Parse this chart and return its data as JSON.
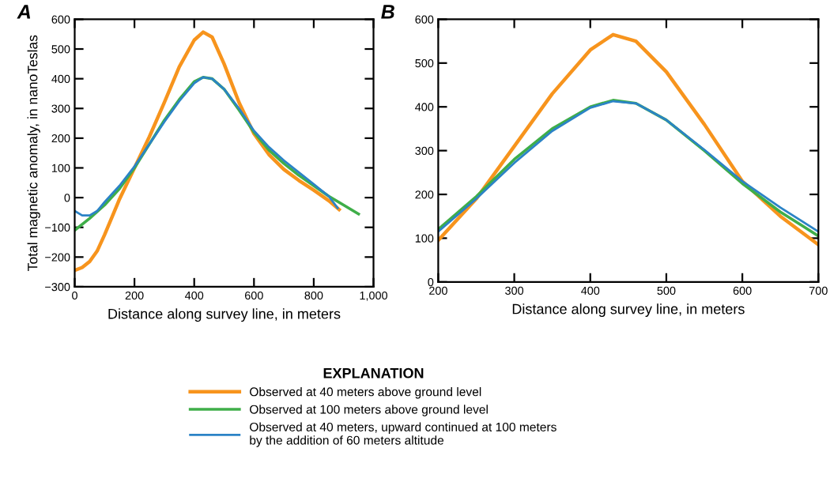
{
  "chart_data": [
    {
      "type": "line",
      "title": "A",
      "xlabel": "Distance along survey line, in meters",
      "ylabel": "Total magnetic anomaly, in nanoTeslas",
      "xlim": [
        0,
        1000
      ],
      "xticks": [
        0,
        200,
        400,
        600,
        800,
        {
          "value": 1000,
          "label": "1,000"
        }
      ],
      "ylim": [
        -300,
        600
      ],
      "yticks": [
        {
          "value": -300,
          "label": "−300"
        },
        {
          "value": -200,
          "label": "−200"
        },
        {
          "value": -100,
          "label": "−100"
        },
        0,
        100,
        200,
        300,
        400,
        500,
        600
      ],
      "grid": false,
      "legend": "bottom",
      "legend_title": "EXPLANATION",
      "series": [
        {
          "name": "Observed at 40 meters above ground level",
          "color": "#f7941d",
          "x": [
            0,
            25,
            50,
            75,
            100,
            125,
            150,
            200,
            250,
            300,
            350,
            400,
            430,
            460,
            500,
            550,
            600,
            650,
            700,
            750,
            800,
            850,
            885
          ],
          "values": [
            -245,
            -235,
            -215,
            -180,
            -125,
            -65,
            -5,
            100,
            205,
            320,
            440,
            530,
            557,
            540,
            450,
            320,
            215,
            145,
            95,
            58,
            25,
            -10,
            -40
          ]
        },
        {
          "name": "Observed at 100 meters above ground level",
          "color": "#3fae49",
          "x": [
            0,
            50,
            100,
            150,
            200,
            250,
            300,
            350,
            400,
            430,
            460,
            500,
            550,
            600,
            650,
            700,
            750,
            800,
            850,
            900,
            950
          ],
          "values": [
            -110,
            -70,
            -25,
            30,
            100,
            180,
            260,
            330,
            390,
            405,
            400,
            365,
            295,
            220,
            160,
            115,
            75,
            40,
            5,
            -25,
            -55
          ]
        },
        {
          "name": "Observed at 40 meters, upward continued at 100 meters\nby the addition of 60 meters altitude",
          "color": "#2b83c6",
          "x": [
            0,
            25,
            50,
            75,
            100,
            150,
            200,
            250,
            300,
            350,
            400,
            430,
            460,
            500,
            550,
            600,
            650,
            700,
            750,
            800,
            850,
            880
          ],
          "values": [
            -45,
            -60,
            -60,
            -45,
            -15,
            40,
            105,
            180,
            255,
            325,
            385,
            405,
            400,
            365,
            300,
            225,
            170,
            125,
            85,
            45,
            5,
            -35
          ]
        }
      ]
    },
    {
      "type": "line",
      "title": "B",
      "xlabel": "Distance along survey line, in meters",
      "xlim": [
        200,
        700
      ],
      "xticks": [
        200,
        300,
        400,
        500,
        600,
        700
      ],
      "ylim": [
        0,
        600
      ],
      "yticks": [
        0,
        100,
        200,
        300,
        400,
        500,
        600
      ],
      "grid": false,
      "series": [
        {
          "color": "#f7941d",
          "x": [
            200,
            250,
            300,
            350,
            400,
            430,
            460,
            500,
            550,
            600,
            650,
            700
          ],
          "values": [
            95,
            190,
            310,
            430,
            530,
            565,
            550,
            480,
            360,
            230,
            150,
            85
          ]
        },
        {
          "color": "#3fae49",
          "x": [
            200,
            250,
            300,
            350,
            400,
            430,
            460,
            500,
            550,
            600,
            650,
            700
          ],
          "values": [
            120,
            195,
            280,
            350,
            400,
            415,
            408,
            370,
            300,
            225,
            160,
            105
          ]
        },
        {
          "color": "#2b83c6",
          "x": [
            200,
            250,
            300,
            350,
            400,
            430,
            460,
            500,
            550,
            600,
            650,
            700
          ],
          "values": [
            115,
            190,
            272,
            345,
            398,
            413,
            408,
            370,
            302,
            230,
            170,
            115
          ]
        }
      ]
    }
  ]
}
